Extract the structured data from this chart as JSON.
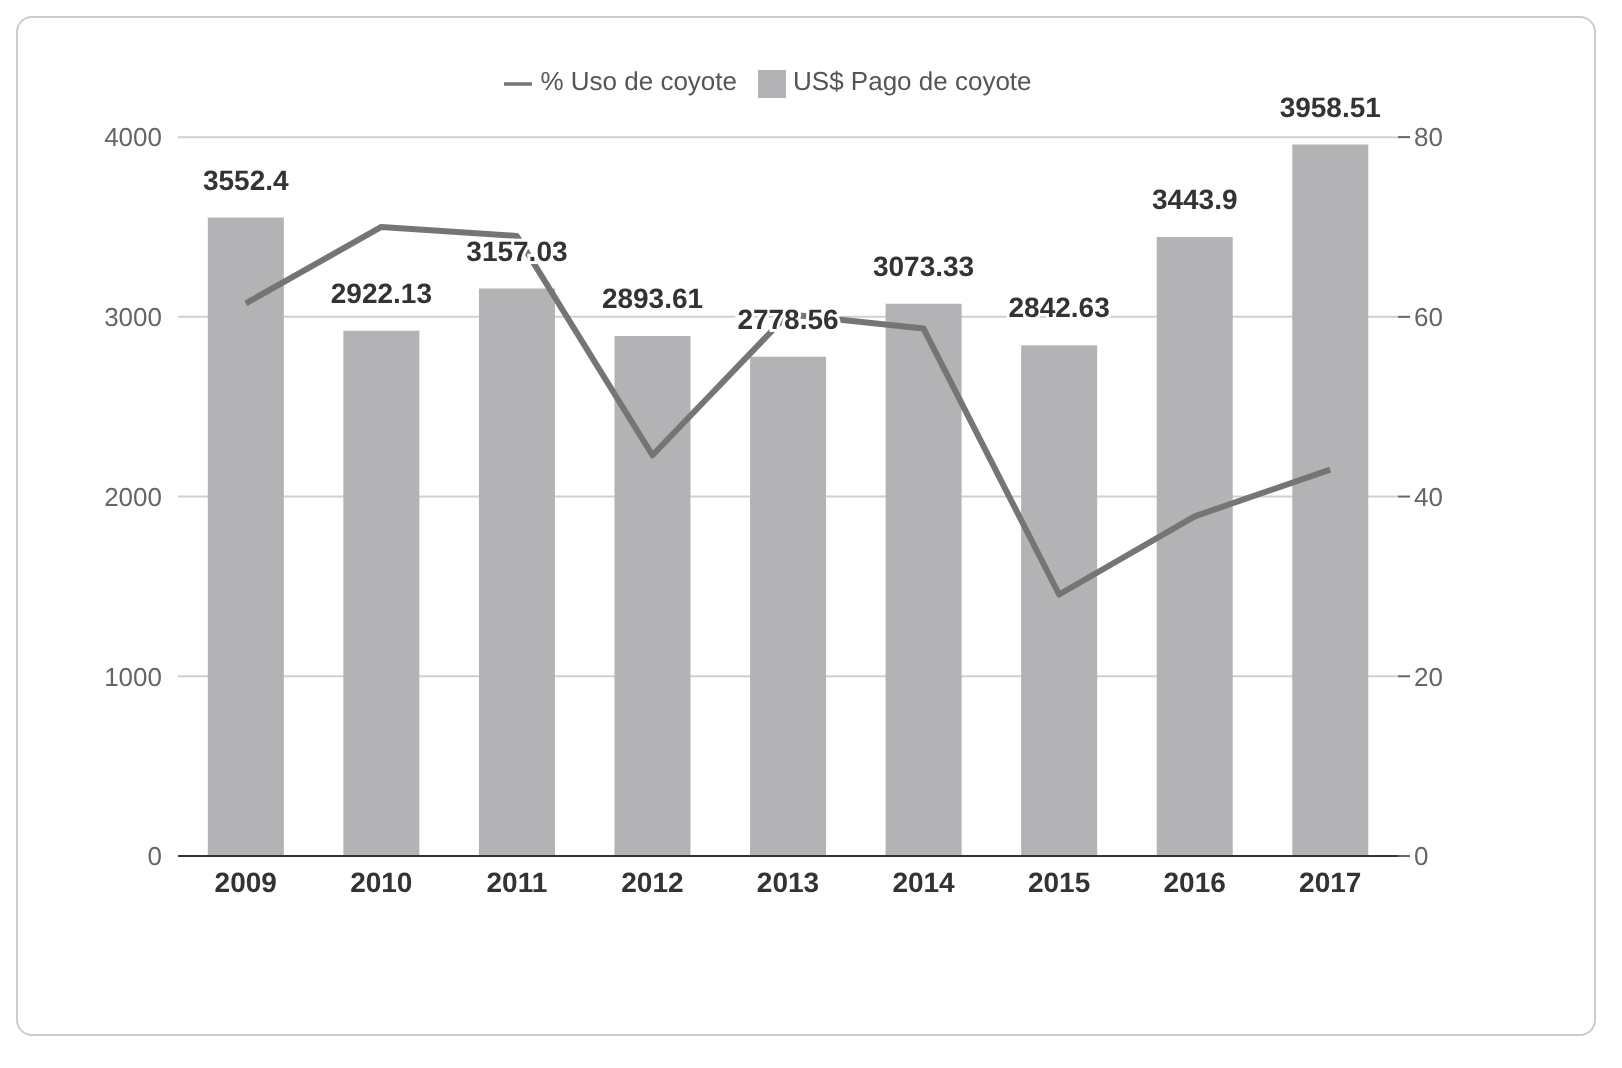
{
  "chart_data": {
    "type": "bar",
    "categories": [
      "2009",
      "2010",
      "2011",
      "2012",
      "2013",
      "2014",
      "2015",
      "2016",
      "2017"
    ],
    "series": [
      {
        "name": "US$ Pago de coyote",
        "color": "#b3b3b5",
        "values": [
          3552.4,
          2922.13,
          3157.03,
          2893.61,
          2778.56,
          3073.33,
          2842.63,
          3443.9,
          3958.51
        ],
        "value_labels": [
          "3552.4",
          "2922.13",
          "3157.03",
          "2893.61",
          "2778.56",
          "3073.33",
          "2842.63",
          "3443.9",
          "3958.51"
        ]
      },
      {
        "name": "% Uso de coyote",
        "type": "line",
        "axis": "y2",
        "color": "#757575",
        "values": [
          61.5,
          70,
          69,
          44.6,
          60.3,
          58.7,
          29.1,
          37.8,
          43
        ]
      }
    ],
    "ylim": [
      0,
      4000
    ],
    "yticks": [
      0,
      1000,
      2000,
      3000,
      4000
    ],
    "y2lim": [
      0,
      80
    ],
    "y2ticks": [
      0,
      20,
      40,
      60,
      80
    ],
    "grid": "y",
    "legend": "top",
    "marker": "none"
  }
}
